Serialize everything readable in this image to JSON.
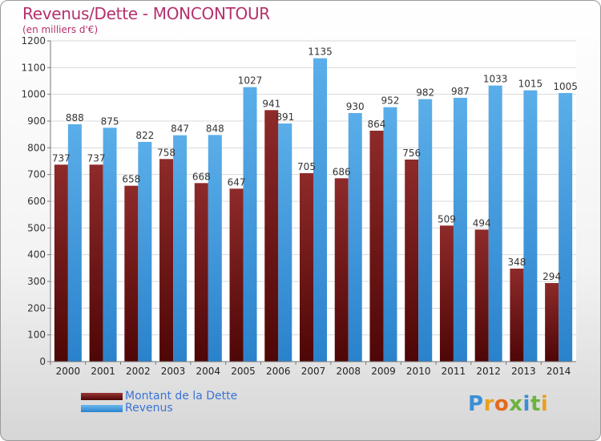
{
  "chart_data": {
    "type": "bar",
    "title": "Revenus/Dette - MONCONTOUR",
    "subtitle": "(en milliers d'€)",
    "categories": [
      "2000",
      "2001",
      "2002",
      "2003",
      "2004",
      "2005",
      "2006",
      "2007",
      "2008",
      "2009",
      "2010",
      "2011",
      "2012",
      "2013",
      "2014"
    ],
    "series": [
      {
        "name": "Montant de la Dette",
        "color": "#7a1a1a",
        "values": [
          737,
          737,
          658,
          758,
          668,
          647,
          941,
          705,
          686,
          864,
          756,
          509,
          494,
          348,
          294
        ]
      },
      {
        "name": "Revenus",
        "color": "#3a98e0",
        "values": [
          888,
          875,
          822,
          847,
          848,
          1027,
          891,
          1135,
          930,
          952,
          982,
          987,
          1033,
          1015,
          1005
        ]
      }
    ],
    "ylim": [
      0,
      1200
    ],
    "yticks": [
      0,
      100,
      200,
      300,
      400,
      500,
      600,
      700,
      800,
      900,
      1000,
      1100,
      1200
    ],
    "grid": true,
    "legend": "bottom-left"
  },
  "logo": {
    "text": "Proxiti",
    "letters": [
      "P",
      "r",
      "o",
      "x",
      "i",
      "t",
      "i"
    ],
    "colors": [
      "#3a8fd8",
      "#e8a020",
      "#e46a1a",
      "#6cb33f",
      "#3a8fd8",
      "#6cb33f",
      "#e8a020"
    ]
  }
}
